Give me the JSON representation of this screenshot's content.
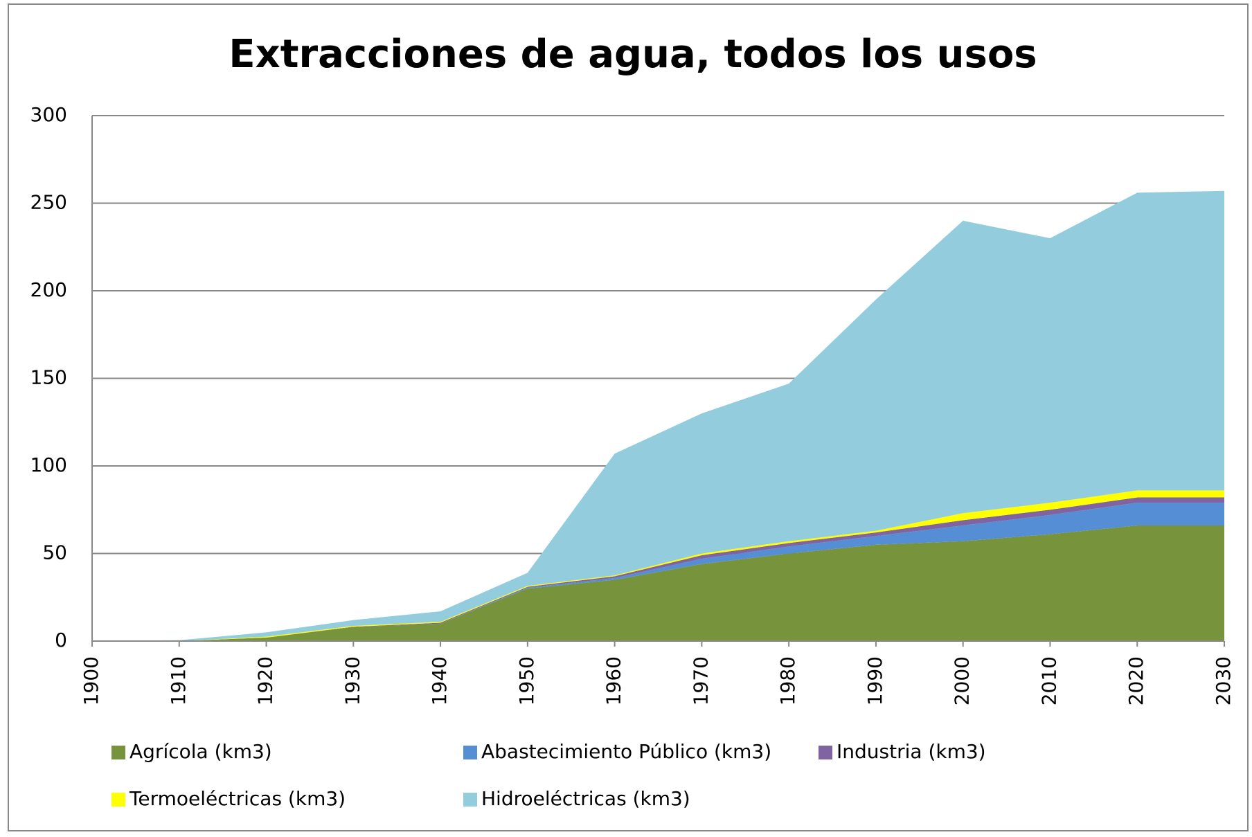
{
  "chart_data": {
    "type": "stacked_area",
    "title": "Extracciones de agua, todos los usos",
    "x": [
      1900,
      1910,
      1920,
      1930,
      1940,
      1950,
      1960,
      1970,
      1980,
      1990,
      2000,
      2010,
      2020,
      2030
    ],
    "xlim": [
      1900,
      2030
    ],
    "xticks": [
      1900,
      1910,
      1920,
      1930,
      1940,
      1950,
      1960,
      1970,
      1980,
      1990,
      2000,
      2010,
      2020,
      2030
    ],
    "ylim": [
      0,
      300
    ],
    "yticks": [
      0,
      50,
      100,
      150,
      200,
      250,
      300
    ],
    "grid": true,
    "legend": "bottom",
    "series": [
      {
        "name": "Agrícola (km3)",
        "color": "#77933c",
        "values": [
          0,
          0,
          2,
          8,
          10,
          30,
          35,
          44,
          50,
          55,
          57,
          61,
          66,
          66
        ]
      },
      {
        "name": "Abastecimiento Público (km3)",
        "color": "#558ed5",
        "values": [
          0,
          0,
          0,
          0,
          0,
          0.5,
          1,
          3,
          4,
          5,
          9,
          11,
          13,
          13
        ]
      },
      {
        "name": "Industria (km3)",
        "color": "#8064a2",
        "values": [
          0,
          0,
          0,
          0.2,
          0.5,
          0.5,
          1,
          2,
          2,
          2,
          3,
          3,
          3,
          3
        ]
      },
      {
        "name": "Termoeléctricas (km3)",
        "color": "#ffff00",
        "values": [
          0,
          0,
          0.5,
          0.5,
          0.5,
          0.5,
          0.5,
          1,
          1,
          1,
          4,
          4,
          4,
          4
        ]
      },
      {
        "name": "Hidroeléctricas (km3)",
        "color": "#93cddd",
        "values": [
          0,
          0.5,
          2.5,
          3.3,
          6,
          7.5,
          69.5,
          80,
          90,
          132,
          167,
          151,
          170,
          171
        ]
      }
    ]
  }
}
